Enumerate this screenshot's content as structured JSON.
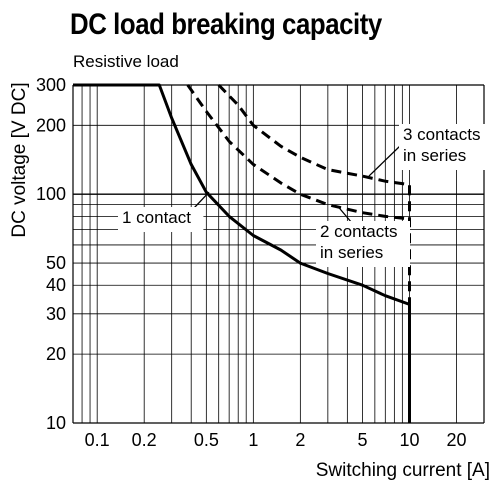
{
  "chart_data": {
    "type": "line",
    "title": "DC load breaking capacity",
    "subtitle": "Resistive load",
    "xlabel": "Switching current [A]",
    "ylabel": "DC voltage [V DC]",
    "xscale": "log",
    "yscale": "log",
    "xlim": [
      0.07,
      30
    ],
    "ylim": [
      10,
      300
    ],
    "grid": true,
    "x_ticks": [
      0.1,
      0.2,
      0.5,
      1,
      2,
      5,
      10,
      20
    ],
    "x_tick_labels": [
      "0.1",
      "0.2",
      "0.5",
      "1",
      "2",
      "5",
      "10",
      "20"
    ],
    "y_ticks": [
      10,
      20,
      30,
      40,
      50,
      100,
      200,
      300
    ],
    "y_tick_labels": [
      "10",
      "20",
      "30",
      "40",
      "50",
      "100",
      "200",
      "300"
    ],
    "series": [
      {
        "name": "1 contact",
        "style": "solid",
        "points": [
          [
            0.07,
            300
          ],
          [
            0.25,
            300
          ],
          [
            0.3,
            215
          ],
          [
            0.4,
            135
          ],
          [
            0.5,
            102
          ],
          [
            0.7,
            80
          ],
          [
            1,
            66
          ],
          [
            1.5,
            57
          ],
          [
            2,
            50
          ],
          [
            3,
            45
          ],
          [
            5,
            40
          ],
          [
            7,
            36
          ],
          [
            10,
            33
          ],
          [
            10,
            10
          ]
        ]
      },
      {
        "name": "2 contacts in series",
        "style": "dashed",
        "points": [
          [
            0.38,
            300
          ],
          [
            0.5,
            230
          ],
          [
            0.7,
            170
          ],
          [
            1,
            135
          ],
          [
            1.5,
            112
          ],
          [
            2,
            100
          ],
          [
            3,
            90
          ],
          [
            5,
            83
          ],
          [
            7,
            80
          ],
          [
            10,
            78
          ]
        ]
      },
      {
        "name": "3 contacts in series",
        "style": "dashed",
        "points": [
          [
            0.6,
            300
          ],
          [
            0.8,
            245
          ],
          [
            1,
            200
          ],
          [
            1.5,
            162
          ],
          [
            2,
            145
          ],
          [
            3,
            128
          ],
          [
            5,
            120
          ],
          [
            7,
            114
          ],
          [
            10,
            110
          ],
          [
            10,
            10
          ]
        ]
      }
    ],
    "annotations": [
      {
        "text": "1 contact",
        "target_x": 0.52,
        "target_y": 102
      },
      {
        "text": "2 contacts",
        "line2": "in series",
        "target_x": 3.5,
        "target_y": 88
      },
      {
        "text": "3 contacts",
        "line2": "in series",
        "target_x": 5.5,
        "target_y": 120
      }
    ]
  }
}
